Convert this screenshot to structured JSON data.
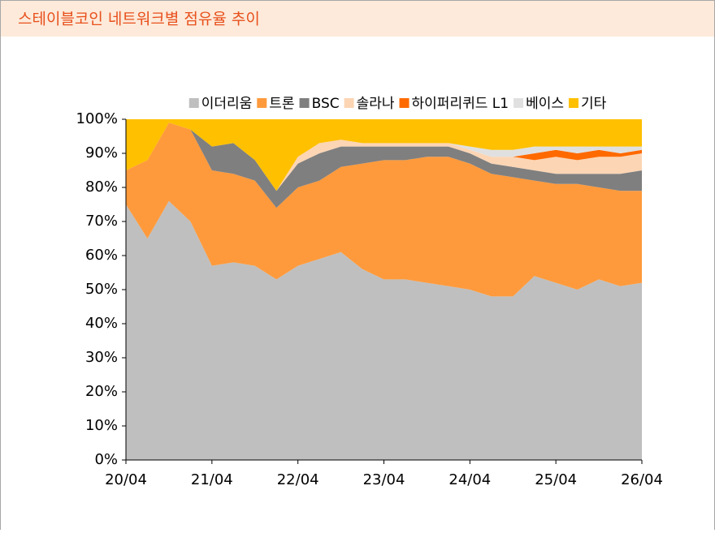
{
  "chart_data": {
    "type": "stacked-area",
    "title": "스테이블코인 네트워크별 점유율 추이",
    "x": [
      "20/04",
      "20/07",
      "20/10",
      "21/01",
      "21/04",
      "21/07",
      "21/10",
      "22/01",
      "22/04",
      "22/07",
      "22/10",
      "23/01",
      "23/04",
      "23/07",
      "23/10",
      "24/01",
      "24/04",
      "24/07",
      "24/10",
      "25/01",
      "25/04",
      "25/07",
      "25/10",
      "26/01",
      "26/04"
    ],
    "xticks": [
      "20/04",
      "21/04",
      "22/04",
      "23/04",
      "24/04",
      "25/04",
      "26/04"
    ],
    "ylim": [
      0,
      100
    ],
    "yticks": [
      {
        "value": 0,
        "label": "0%"
      },
      {
        "value": 10,
        "label": "10%"
      },
      {
        "value": 20,
        "label": "20%"
      },
      {
        "value": 30,
        "label": "30%"
      },
      {
        "value": 40,
        "label": "40%"
      },
      {
        "value": 50,
        "label": "50%"
      },
      {
        "value": 60,
        "label": "60%"
      },
      {
        "value": 70,
        "label": "70%"
      },
      {
        "value": 80,
        "label": "80%"
      },
      {
        "value": 90,
        "label": "90%"
      },
      {
        "value": 100,
        "label": "100%"
      }
    ],
    "legend": "top",
    "series": [
      {
        "name": "이더리움",
        "color": "#bfbfbf",
        "values": [
          75,
          65,
          76,
          70,
          57,
          58,
          57,
          53,
          57,
          59,
          61,
          56,
          53,
          53,
          52,
          51,
          50,
          48,
          48,
          54,
          52,
          50,
          53,
          51,
          52
        ]
      },
      {
        "name": "트론",
        "color": "#ff9a3c",
        "values": [
          10,
          23,
          23,
          27,
          28,
          26,
          25,
          21,
          23,
          23,
          25,
          31,
          35,
          35,
          37,
          38,
          37,
          36,
          35,
          28,
          29,
          31,
          27,
          28,
          27
        ]
      },
      {
        "name": "BSC",
        "color": "#7f7f7f",
        "values": [
          0,
          0,
          0,
          0,
          7,
          9,
          6,
          5,
          7,
          8,
          6,
          5,
          4,
          4,
          3,
          3,
          3,
          3,
          3,
          3,
          3,
          3,
          4,
          5,
          6
        ]
      },
      {
        "name": "솔라나",
        "color": "#fcd5b4",
        "values": [
          0,
          0,
          0,
          0,
          0,
          0,
          0,
          0,
          2,
          3,
          2,
          1,
          1,
          1,
          1,
          1,
          1,
          2,
          3,
          3,
          5,
          4,
          5,
          5,
          5
        ]
      },
      {
        "name": "하이퍼리퀴드 L1",
        "color": "#ff6a00",
        "values": [
          0,
          0,
          0,
          0,
          0,
          0,
          0,
          0,
          0,
          0,
          0,
          0,
          0,
          0,
          0,
          0,
          0,
          0,
          0,
          2,
          2,
          2,
          2,
          1,
          1
        ]
      },
      {
        "name": "베이스",
        "color": "#e0e0e0",
        "values": [
          0,
          0,
          0,
          0,
          0,
          0,
          0,
          0,
          0,
          0,
          0,
          0,
          0,
          0,
          0,
          0,
          1,
          2,
          2,
          2,
          1,
          2,
          1,
          2,
          1
        ]
      },
      {
        "name": "기타",
        "color": "#ffc000",
        "values": [
          15,
          12,
          1,
          3,
          8,
          7,
          12,
          21,
          11,
          7,
          6,
          7,
          7,
          7,
          7,
          7,
          8,
          9,
          9,
          8,
          8,
          8,
          8,
          8,
          8
        ]
      }
    ]
  }
}
